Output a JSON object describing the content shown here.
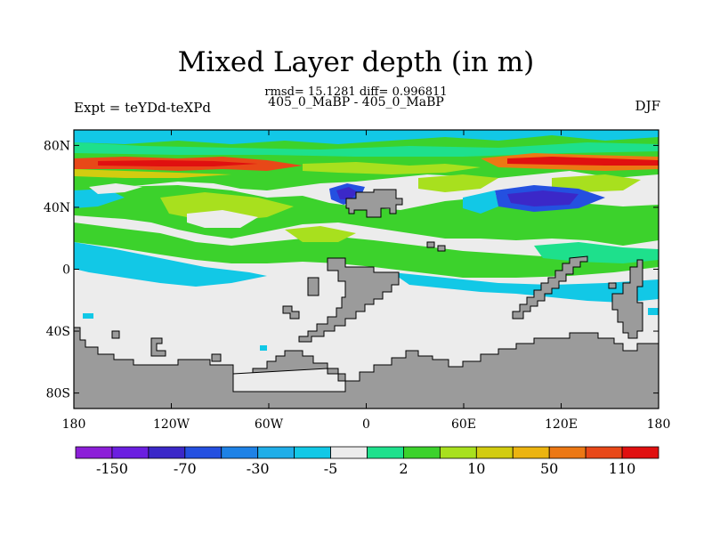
{
  "title": "Mixed Layer depth (in m)",
  "stats": "rmsd= 15.1281 diff= 0.996811",
  "subtitle": "405_0_MaBP - 405_0_MaBP",
  "left_label": "Expt = teYDd-teXPd",
  "right_label": "DJF",
  "y_ticks": [
    {
      "label": "80N",
      "lat": 80
    },
    {
      "label": "40N",
      "lat": 40
    },
    {
      "label": "0",
      "lat": 0
    },
    {
      "label": "40S",
      "lat": -40
    },
    {
      "label": "80S",
      "lat": -80
    }
  ],
  "x_ticks": [
    {
      "label": "180",
      "lon": -180
    },
    {
      "label": "120W",
      "lon": -120
    },
    {
      "label": "60W",
      "lon": -60
    },
    {
      "label": "0",
      "lon": 0
    },
    {
      "label": "60E",
      "lon": 60
    },
    {
      "label": "120E",
      "lon": 120
    },
    {
      "label": "180",
      "lon": 180
    }
  ],
  "colorbar": {
    "colors": [
      "#8c1fd8",
      "#6b1fe0",
      "#3b28c8",
      "#2450e0",
      "#1e82e6",
      "#20aee8",
      "#12c8e6",
      "#ececec",
      "#1ee08c",
      "#3cd22c",
      "#a8e01e",
      "#d2cc10",
      "#ecb410",
      "#ec7814",
      "#e84818",
      "#e01010"
    ],
    "labels": [
      {
        "text": "-150",
        "after_box": 1
      },
      {
        "text": "-70",
        "after_box": 3
      },
      {
        "text": "-30",
        "after_box": 5
      },
      {
        "text": "-5",
        "after_box": 7
      },
      {
        "text": "2",
        "after_box": 9
      },
      {
        "text": "10",
        "after_box": 11
      },
      {
        "text": "50",
        "after_box": 13
      },
      {
        "text": "110",
        "after_box": 15
      }
    ]
  },
  "colors": {
    "land": "#9b9b9b",
    "near_zero": "#ececec",
    "green": "#3cd22c",
    "light_green": "#1ee08c",
    "cyan": "#12c8e6",
    "lime": "#a8e01e",
    "orange": "#ec7814",
    "red": "#e01010",
    "blue": "#2450e0",
    "purple": "#3b28c8"
  }
}
